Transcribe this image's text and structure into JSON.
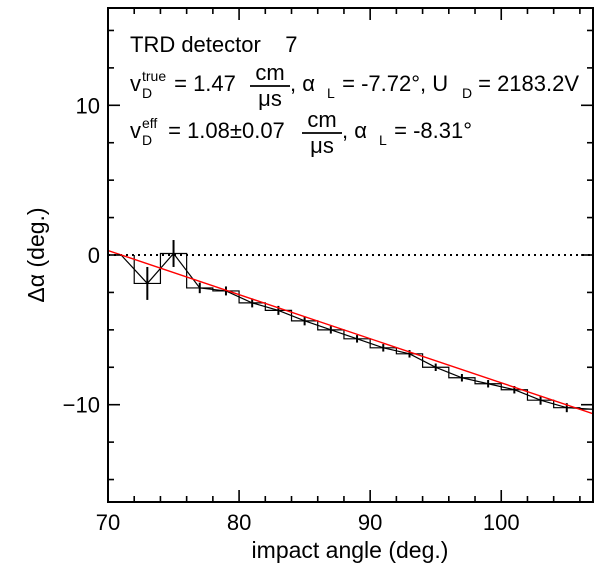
{
  "chart_data": {
    "type": "line",
    "xlabel": "impact angle (deg.)",
    "ylabel": "Δα (deg.)",
    "xlim": [
      70,
      107
    ],
    "ylim": [
      -16.5,
      16.5
    ],
    "x_ticks": [
      70,
      80,
      90,
      100
    ],
    "y_ticks": [
      10,
      0,
      -10
    ],
    "zero_line": {
      "y": 0,
      "style": "dotted"
    },
    "annotations": {
      "line1": "TRD detector    7",
      "line2_prefix": "v",
      "line2_sup": "true",
      "line2_sub": "D",
      "line2_value": " = 1.47",
      "line2_frac_num": "cm",
      "line2_frac_den": "μs",
      "line2_sep": ", α",
      "line2_alpha_sub": "L",
      "line2_alpha_value": " = -7.72°, U",
      "line2_u_sub": "D",
      "line2_u_value": " = 2183.2V",
      "line3_prefix": "v",
      "line3_sup": "eff",
      "line3_sub": "D",
      "line3_value": " = 1.08±0.07",
      "line3_frac_num": "cm",
      "line3_frac_den": "μs",
      "line3_sep": ", α",
      "line3_alpha_sub": "L",
      "line3_alpha_value": " = -8.31°"
    },
    "series": [
      {
        "style": "histogram-steps",
        "bin_width": 2,
        "x": [
          73,
          75,
          77,
          79,
          81,
          83,
          85,
          87,
          89,
          91,
          93,
          95,
          97,
          99,
          101,
          103,
          105,
          107
        ],
        "y": [
          -1.9,
          0.1,
          -2.2,
          -2.4,
          -3.2,
          -3.7,
          -4.4,
          -5.0,
          -5.6,
          -6.2,
          -6.6,
          -7.5,
          -8.2,
          -8.6,
          -9.0,
          -9.7,
          -10.2,
          -10.3
        ],
        "yerr": [
          1.1,
          0.9,
          0.35,
          0.3,
          0.3,
          0.3,
          0.3,
          0.25,
          0.25,
          0.25,
          0.25,
          0.25,
          0.25,
          0.25,
          0.25,
          0.3,
          0.3,
          0.7
        ],
        "color": "#000000"
      },
      {
        "style": "polyline",
        "x": [
          71,
          73,
          75,
          77,
          79,
          81,
          83,
          85,
          87,
          89,
          91,
          93,
          95,
          97,
          99,
          101,
          103,
          105,
          107
        ],
        "y": [
          0.0,
          -1.9,
          0.1,
          -2.2,
          -2.4,
          -3.2,
          -3.7,
          -4.4,
          -5.0,
          -5.6,
          -6.2,
          -6.6,
          -7.5,
          -8.2,
          -8.6,
          -9.0,
          -9.7,
          -10.2,
          -10.3
        ],
        "color": "#000000"
      },
      {
        "style": "fit-line",
        "x": [
          70,
          107
        ],
        "y": [
          0.3,
          -10.6
        ],
        "color": "#ff0000"
      }
    ]
  }
}
